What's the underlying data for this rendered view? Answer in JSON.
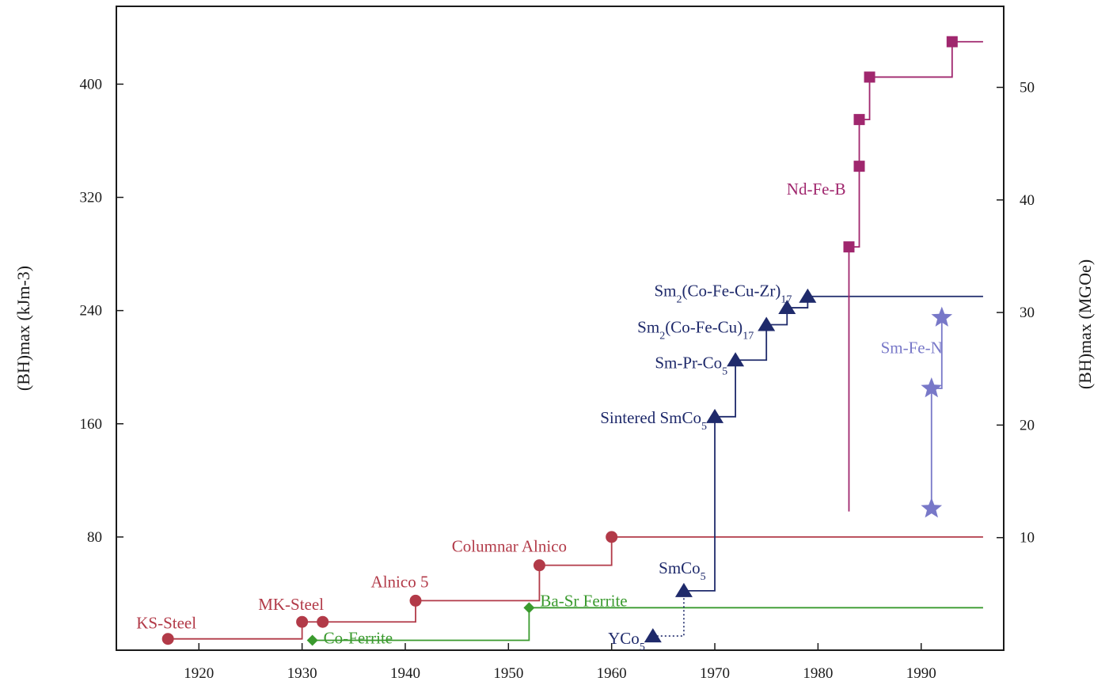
{
  "chart_data": {
    "type": "line",
    "title": "",
    "xlabel": "",
    "ylabel": "(BH)max (kJm-3)",
    "ylabel_right": "(BH)max (MGOe)",
    "xlim": [
      1912,
      1998
    ],
    "ylim": [
      0,
      455
    ],
    "ylim_right_MGOe": [
      0,
      57.2
    ],
    "x_ticks": [
      1920,
      1930,
      1940,
      1950,
      1960,
      1970,
      1980,
      1990
    ],
    "y_ticks": [
      80,
      160,
      240,
      320,
      400
    ],
    "y_ticks_right": [
      10,
      20,
      30,
      40,
      50
    ],
    "grid": false,
    "legend": "none",
    "series": [
      {
        "id": "steel-alnico",
        "color": "#b23a48",
        "marker": "circle",
        "points": [
          {
            "x": 1917,
            "y": 8,
            "label": "KS-Steel"
          },
          {
            "x": 1930,
            "y": 20,
            "label": "MK-Steel"
          },
          {
            "x": 1932,
            "y": 20,
            "label": ""
          },
          {
            "x": 1941,
            "y": 35,
            "label": "Alnico 5"
          },
          {
            "x": 1953,
            "y": 60,
            "label": "Columnar Alnico"
          },
          {
            "x": 1960,
            "y": 80,
            "label": ""
          }
        ],
        "end_x": 1996
      },
      {
        "id": "ferrite",
        "color": "#3a9a2e",
        "marker": "diamond",
        "points": [
          {
            "x": 1931,
            "y": 7,
            "label": "Co-Ferrite"
          },
          {
            "x": 1952,
            "y": 30,
            "label": "Ba-Sr Ferrite"
          }
        ],
        "end_x": 1996
      },
      {
        "id": "sm-co",
        "color": "#1f2a6b",
        "marker": "triangle",
        "points": [
          {
            "x": 1964,
            "y": 10,
            "label": "YCo5"
          },
          {
            "x": 1967,
            "y": 42,
            "label": "SmCo5"
          },
          {
            "x": 1970,
            "y": 165,
            "label": "Sintered SmCo5"
          },
          {
            "x": 1972,
            "y": 205,
            "label": "Sm-Pr-Co5"
          },
          {
            "x": 1975,
            "y": 230,
            "label": "Sm2(Co-Fe-Cu)17"
          },
          {
            "x": 1977,
            "y": 242,
            "label": ""
          },
          {
            "x": 1979,
            "y": 250,
            "label": "Sm2(Co-Fe-Cu-Zr)17"
          }
        ],
        "end_x": 1996
      },
      {
        "id": "nd-fe-b",
        "color": "#a0276e",
        "marker": "square",
        "points": [
          {
            "x": 1983,
            "y": 285,
            "label": ""
          },
          {
            "x": 1984,
            "y": 342,
            "label": ""
          },
          {
            "x": 1984,
            "y": 375,
            "label": ""
          },
          {
            "x": 1985,
            "y": 405,
            "label": ""
          },
          {
            "x": 1993,
            "y": 430,
            "label": ""
          }
        ],
        "series_label": "Nd-Fe-B",
        "end_x": 1996
      },
      {
        "id": "sm-fe-n",
        "color": "#7878c8",
        "marker": "star",
        "points": [
          {
            "x": 1991,
            "y": 100,
            "label": ""
          },
          {
            "x": 1991,
            "y": 185,
            "label": ""
          },
          {
            "x": 1992,
            "y": 235,
            "label": ""
          }
        ],
        "series_label": "Sm-Fe-N"
      }
    ]
  }
}
